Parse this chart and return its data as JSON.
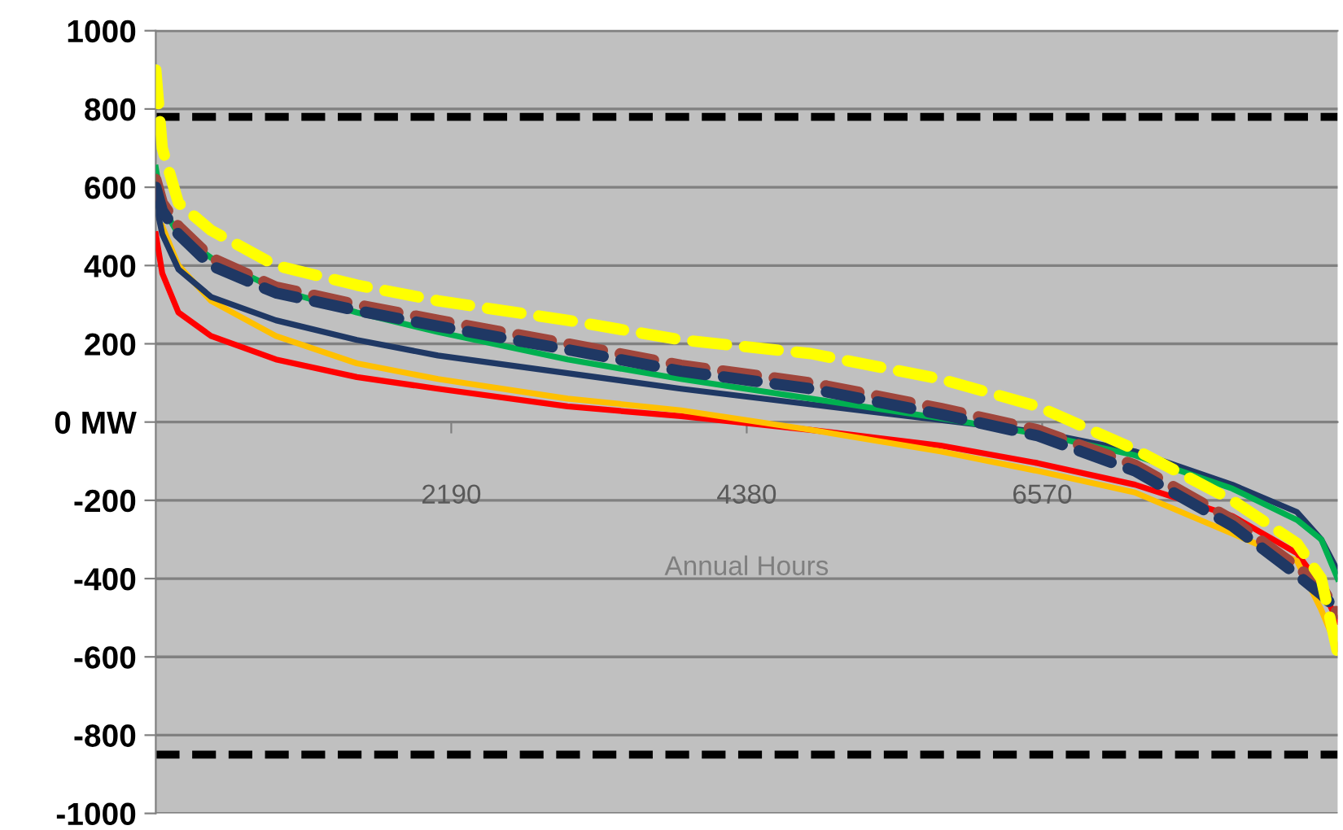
{
  "chart_data": {
    "type": "line",
    "xlabel": "Annual Hours",
    "xlim": [
      0,
      8760
    ],
    "xticks": [
      2190,
      4380,
      6570
    ],
    "ylim": [
      -1000,
      1000
    ],
    "yticks": [
      -1000,
      -800,
      -600,
      -400,
      -200,
      {
        "value": 0,
        "label": "0 MW"
      },
      200,
      400,
      600,
      800,
      1000
    ],
    "grid": "y",
    "legend": false,
    "series": [
      {
        "color": "#ff0000",
        "line_style": "solid",
        "x": [
          0,
          48,
          168,
          409,
          890,
          1490,
          2091,
          3052,
          3893,
          4855,
          5816,
          6537,
          7258,
          7979,
          8459,
          8639,
          8760
        ],
        "values": [
          480,
          380,
          280,
          220,
          160,
          115,
          85,
          40,
          15,
          -20,
          -60,
          -105,
          -160,
          -240,
          -335,
          -420,
          -510
        ]
      },
      {
        "color": "#ffc000",
        "line_style": "solid",
        "x": [
          48,
          168,
          409,
          890,
          1490,
          2091,
          3052,
          3893,
          4855,
          5816,
          6537,
          7258,
          7979,
          8459,
          8639,
          8760
        ],
        "values": [
          500,
          400,
          310,
          220,
          150,
          110,
          60,
          30,
          -20,
          -75,
          -125,
          -180,
          -285,
          -355,
          -480,
          -580
        ]
      },
      {
        "color": "#1f3864",
        "line_style": "solid",
        "x": [
          0,
          48,
          168,
          409,
          890,
          1490,
          2091,
          3052,
          3893,
          4855,
          5816,
          6537,
          7258,
          7979,
          8459,
          8639,
          8760
        ],
        "values": [
          560,
          480,
          390,
          320,
          260,
          210,
          170,
          125,
          85,
          45,
          5,
          -25,
          -75,
          -160,
          -230,
          -300,
          -380
        ]
      },
      {
        "color": "#00b050",
        "line_style": "solid",
        "x": [
          0,
          48,
          168,
          409,
          890,
          1490,
          2091,
          3052,
          3893,
          4855,
          5816,
          6537,
          7258,
          7979,
          8459,
          8639,
          8760
        ],
        "values": [
          650,
          550,
          480,
          420,
          340,
          280,
          230,
          160,
          110,
          60,
          10,
          -30,
          -85,
          -170,
          -250,
          -300,
          -400
        ]
      },
      {
        "color": "#a0463c",
        "line_style": "dashed",
        "x": [
          0,
          48,
          168,
          409,
          890,
          1490,
          2091,
          3052,
          3893,
          4855,
          5816,
          6537,
          7258,
          7979,
          8459,
          8639,
          8760
        ],
        "values": [
          620,
          560,
          500,
          420,
          345,
          300,
          260,
          200,
          145,
          100,
          35,
          -20,
          -110,
          -250,
          -370,
          -420,
          -490
        ]
      },
      {
        "color": "#1f3864",
        "line_style": "dashed",
        "x": [
          0,
          48,
          168,
          409,
          890,
          1490,
          2091,
          3052,
          3893,
          4855,
          5816,
          6537,
          7258,
          7979,
          8459,
          8639,
          8760
        ],
        "values": [
          600,
          540,
          480,
          400,
          330,
          285,
          245,
          185,
          130,
          85,
          20,
          -35,
          -125,
          -265,
          -390,
          -440,
          -480
        ]
      },
      {
        "color": "#ffff00",
        "line_style": "dashed",
        "x": [
          0,
          48,
          168,
          409,
          890,
          1490,
          2091,
          3052,
          3893,
          4855,
          5816,
          6537,
          7258,
          7979,
          8459,
          8639,
          8760
        ],
        "values": [
          900,
          700,
          560,
          490,
          400,
          350,
          310,
          260,
          210,
          175,
          110,
          40,
          -70,
          -200,
          -310,
          -400,
          -590
        ]
      }
    ],
    "ref_lines": [
      {
        "axis": "y",
        "value": 780,
        "color": "#000000",
        "line_style": "dashed"
      },
      {
        "axis": "y",
        "value": -850,
        "color": "#000000",
        "line_style": "dashed"
      }
    ]
  }
}
